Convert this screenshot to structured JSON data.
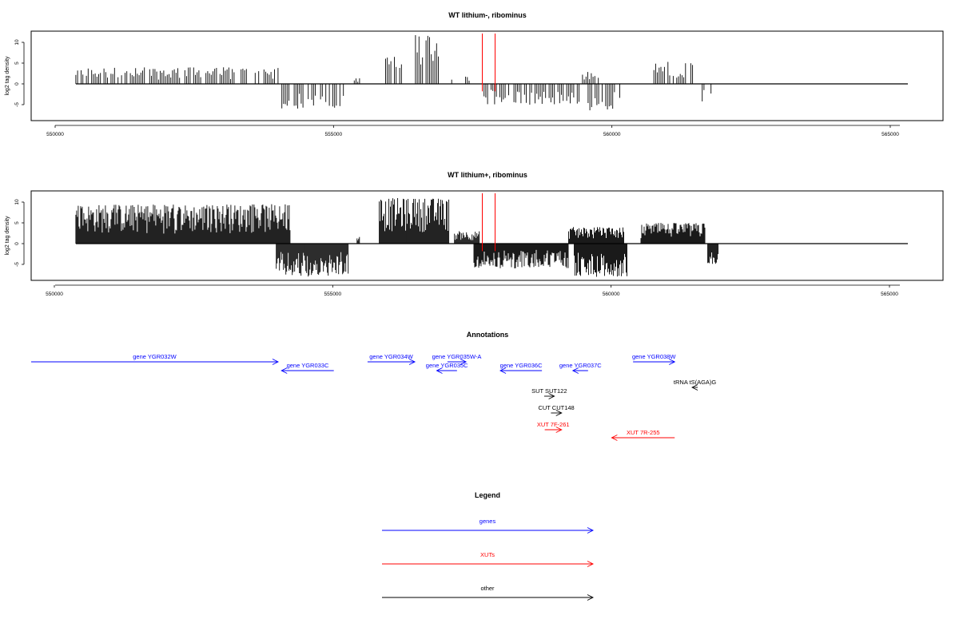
{
  "chart_data": [
    {
      "type": "bar",
      "title": "WT lithium-, ribominus",
      "ylabel": "log2 tag density",
      "xlim": [
        550000,
        565000
      ],
      "ylim": [
        -8,
        12
      ],
      "x_ticks": [
        "550000",
        "555000",
        "560000",
        "565000"
      ],
      "y_ticks": [
        "-5",
        "0",
        "5",
        "10"
      ],
      "markers_x": [
        557500,
        557730
      ],
      "marker_color": "#ff0000",
      "density": "sparse",
      "regions": [
        {
          "start": 550200,
          "end": 553850,
          "sign": 1,
          "max": 4.0
        },
        {
          "start": 553900,
          "end": 555050,
          "sign": -1,
          "max": 6.0
        },
        {
          "start": 555200,
          "end": 555300,
          "sign": 1,
          "max": 1.5
        },
        {
          "start": 555700,
          "end": 556050,
          "sign": 1,
          "max": 7.0
        },
        {
          "start": 556300,
          "end": 556750,
          "sign": 1,
          "max": 12.0
        },
        {
          "start": 556950,
          "end": 557000,
          "sign": 1,
          "max": 2.0
        },
        {
          "start": 557200,
          "end": 557300,
          "sign": 1,
          "max": 2.5
        },
        {
          "start": 557500,
          "end": 559300,
          "sign": -1,
          "max": 5.0
        },
        {
          "start": 559300,
          "end": 559600,
          "sign": 1,
          "max": 3.0
        },
        {
          "start": 559400,
          "end": 560000,
          "sign": -1,
          "max": 6.5
        },
        {
          "start": 560550,
          "end": 561300,
          "sign": 1,
          "max": 5.5
        },
        {
          "start": 561450,
          "end": 561750,
          "sign": -1,
          "max": 5.0
        }
      ]
    },
    {
      "type": "bar",
      "title": "WT lithium+, ribominus",
      "ylabel": "log2 tag density",
      "xlim": [
        550000,
        565000
      ],
      "ylim": [
        -8,
        12
      ],
      "x_ticks": [
        "550000",
        "555000",
        "560000",
        "565000"
      ],
      "y_ticks": [
        "-5",
        "0",
        "5",
        "10"
      ],
      "markers_x": [
        557500,
        557730
      ],
      "marker_color": "#ff0000",
      "density": "dense",
      "regions": [
        {
          "start": 550200,
          "end": 554050,
          "sign": 1,
          "max": 9.5
        },
        {
          "start": 553800,
          "end": 555100,
          "sign": -1,
          "max": 8.0
        },
        {
          "start": 555250,
          "end": 555300,
          "sign": 1,
          "max": 2.0
        },
        {
          "start": 555650,
          "end": 556900,
          "sign": 1,
          "max": 11.0
        },
        {
          "start": 557000,
          "end": 557450,
          "sign": 1,
          "max": 3.0
        },
        {
          "start": 557350,
          "end": 559050,
          "sign": -1,
          "max": 6.0
        },
        {
          "start": 559050,
          "end": 560050,
          "sign": 1,
          "max": 4.0
        },
        {
          "start": 559150,
          "end": 560100,
          "sign": -1,
          "max": 8.0
        },
        {
          "start": 560350,
          "end": 561500,
          "sign": 1,
          "max": 5.0
        },
        {
          "start": 561550,
          "end": 561750,
          "sign": -1,
          "max": 5.0
        }
      ]
    }
  ],
  "annotations": {
    "title": "Annotations",
    "colors": {
      "genes": "#0000ff",
      "XUTs": "#ff0000",
      "other": "#000000"
    },
    "features": [
      {
        "label": "gene YGR032W",
        "start": 549600,
        "end": 553990,
        "strand": "+",
        "type": "genes",
        "row": 0
      },
      {
        "label": "gene YGR033C",
        "start": 554050,
        "end": 554980,
        "strand": "-",
        "type": "genes",
        "row": 1
      },
      {
        "label": "gene YGR034W",
        "start": 555580,
        "end": 556420,
        "strand": "+",
        "type": "genes",
        "row": 0
      },
      {
        "label": "gene YGR035W-A",
        "start": 557000,
        "end": 557330,
        "strand": "+",
        "type": "genes",
        "row": 0
      },
      {
        "label": "gene YGR035C",
        "start": 556810,
        "end": 557170,
        "strand": "-",
        "type": "genes",
        "row": 1
      },
      {
        "label": "gene YGR036C",
        "start": 557940,
        "end": 558680,
        "strand": "-",
        "type": "genes",
        "row": 1
      },
      {
        "label": "gene YGR037C",
        "start": 559230,
        "end": 559500,
        "strand": "-",
        "type": "genes",
        "row": 1
      },
      {
        "label": "gene YGR038W",
        "start": 560300,
        "end": 561040,
        "strand": "+",
        "type": "genes",
        "row": 0
      },
      {
        "label": "tRNA tS(AGA)G",
        "start": 561350,
        "end": 561450,
        "strand": "-",
        "type": "other",
        "row": 2
      },
      {
        "label": "SUT SUT122",
        "start": 558720,
        "end": 558900,
        "strand": "+",
        "type": "other",
        "row": 3
      },
      {
        "label": "CUT CUT148",
        "start": 558840,
        "end": 559030,
        "strand": "+",
        "type": "other",
        "row": 4
      },
      {
        "label": "XUT 7F-261",
        "start": 558730,
        "end": 559030,
        "strand": "+",
        "type": "XUTs",
        "row": 5
      },
      {
        "label": "XUT 7R-255",
        "start": 559920,
        "end": 561040,
        "strand": "-",
        "type": "XUTs",
        "row": 6
      }
    ]
  },
  "legend": {
    "title": "Legend",
    "items": [
      {
        "label": "genes",
        "color": "#0000ff"
      },
      {
        "label": "XUTs",
        "color": "#ff0000"
      },
      {
        "label": "other",
        "color": "#000000"
      }
    ]
  }
}
